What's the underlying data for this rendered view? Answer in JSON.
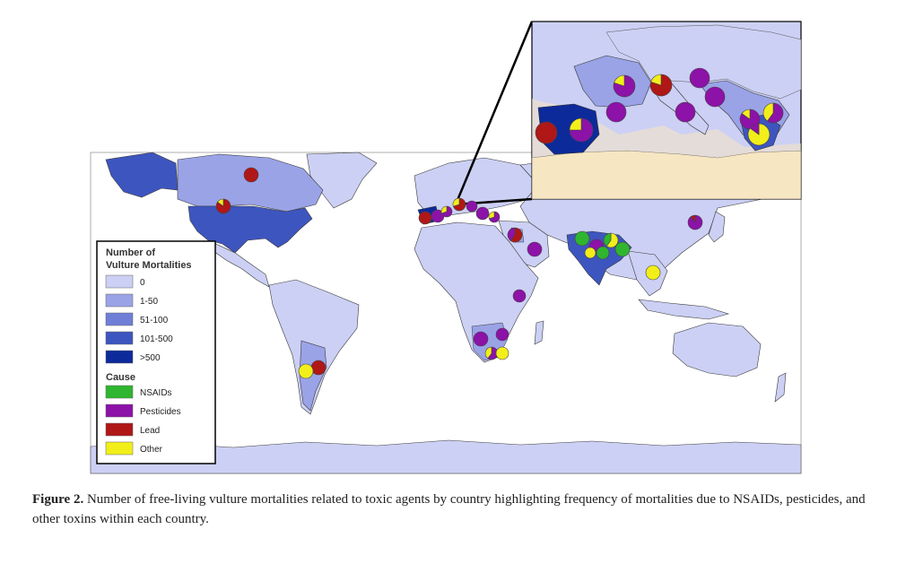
{
  "figure": {
    "caption_label": "Figure 2.",
    "caption_text": "Number of free-living vulture mortalities related to toxic agents by country highlighting frequency of mortalities due to NSAIDs, pesticides, and other toxins within each country."
  },
  "legend": {
    "title_line1": "Number of",
    "title_line2": "Vulture Mortalities",
    "mortality_classes": [
      {
        "label": "0",
        "color": "#ccd0f4"
      },
      {
        "label": "1-50",
        "color": "#9aa3e6"
      },
      {
        "label": "51-100",
        "color": "#6f7fd8"
      },
      {
        "label": "101-500",
        "color": "#3d55bf"
      },
      {
        "label": ">500",
        "color": "#0d2a9a"
      }
    ],
    "cause_title": "Cause",
    "causes": [
      {
        "label": "NSAIDs",
        "color": "#2fb52f"
      },
      {
        "label": "Pesticides",
        "color": "#8c12a8"
      },
      {
        "label": "Lead",
        "color": "#b01717"
      },
      {
        "label": "Other",
        "color": "#f2ee1a"
      }
    ]
  },
  "colors": {
    "ocean": "#ffffff",
    "land_border": "#3a3a3a",
    "inset_background": "#f7e6c2"
  }
}
